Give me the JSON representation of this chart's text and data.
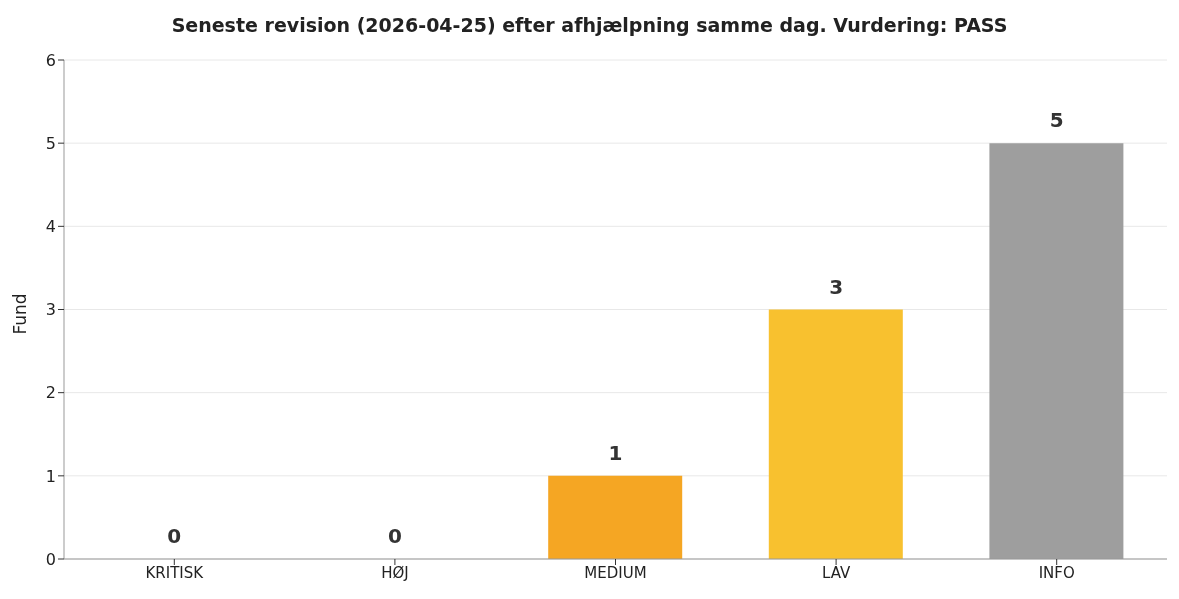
{
  "chart_data": {
    "type": "bar",
    "title": "Seneste revision (2026-04-25) efter afhjælpning samme dag. Vurdering: PASS",
    "ylabel": "Fund",
    "categories": [
      "KRITISK",
      "HØJ",
      "MEDIUM",
      "LAV",
      "INFO"
    ],
    "values": [
      0,
      0,
      1,
      3,
      5
    ],
    "colors": [
      "#d62728",
      "#e8602c",
      "#f5a623",
      "#f8c12f",
      "#9e9e9e"
    ],
    "ylim": [
      0,
      6
    ],
    "yticks": [
      0,
      1,
      2,
      3,
      4,
      5,
      6
    ],
    "grid": "y",
    "data_labels": true
  }
}
